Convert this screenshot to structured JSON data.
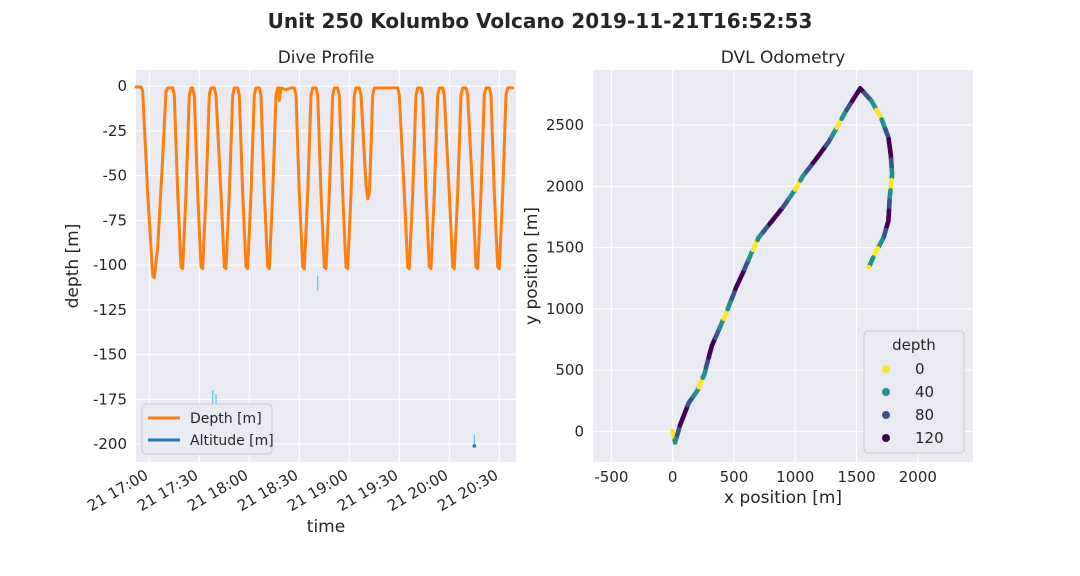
{
  "figure": {
    "suptitle": "Unit 250 Kolumbo Volcano 2019-11-21T16:52:53"
  },
  "chart_data": [
    {
      "type": "line",
      "title": "Dive Profile",
      "xlabel": "time",
      "ylabel": "depth [m]",
      "x_ticks": [
        "21 17:00",
        "21 17:30",
        "21 18:00",
        "21 18:30",
        "21 19:00",
        "21 19:30",
        "21 20:00",
        "21 20:30"
      ],
      "y_ticks": [
        0,
        -25,
        -50,
        -75,
        -100,
        -125,
        -150,
        -175,
        -200
      ],
      "xlim": [
        "16:52",
        "20:40"
      ],
      "ylim": [
        -210,
        9
      ],
      "grid": true,
      "legend_position": "lower-left",
      "series": [
        {
          "name": "Depth [m]",
          "color": "#ff7f0e",
          "points": [
            [
              "16:52",
              -0.5
            ],
            [
              "16:55",
              -0.5
            ],
            [
              "16:56",
              -3
            ],
            [
              "16:59",
              -60
            ],
            [
              "17:02",
              -106
            ],
            [
              "17:03",
              -107
            ],
            [
              "17:05",
              -90
            ],
            [
              "17:08",
              -40
            ],
            [
              "17:10",
              -3
            ],
            [
              "17:11",
              -1
            ],
            [
              "17:14",
              -1
            ],
            [
              "17:15",
              -5
            ],
            [
              "17:17",
              -60
            ],
            [
              "17:19",
              -101
            ],
            [
              "17:20",
              -102
            ],
            [
              "17:22",
              -60
            ],
            [
              "17:24",
              -5
            ],
            [
              "17:25",
              -1
            ],
            [
              "17:26",
              -1
            ],
            [
              "17:27",
              -5
            ],
            [
              "17:29",
              -60
            ],
            [
              "17:31",
              -101
            ],
            [
              "17:32",
              -102
            ],
            [
              "17:34",
              -60
            ],
            [
              "17:36",
              -5
            ],
            [
              "17:37",
              -1
            ],
            [
              "17:39",
              -1
            ],
            [
              "17:40",
              -5
            ],
            [
              "17:43",
              -60
            ],
            [
              "17:45",
              -101
            ],
            [
              "17:46",
              -102
            ],
            [
              "17:48",
              -60
            ],
            [
              "17:50",
              -5
            ],
            [
              "17:51",
              -1
            ],
            [
              "17:53",
              -1
            ],
            [
              "17:54",
              -5
            ],
            [
              "17:56",
              -60
            ],
            [
              "17:58",
              -101
            ],
            [
              "17:59",
              -102
            ],
            [
              "18:01",
              -60
            ],
            [
              "18:03",
              -5
            ],
            [
              "18:04",
              -1
            ],
            [
              "18:06",
              -1
            ],
            [
              "18:07",
              -5
            ],
            [
              "18:09",
              -60
            ],
            [
              "18:11",
              -101
            ],
            [
              "18:12",
              -102
            ],
            [
              "18:14",
              -60
            ],
            [
              "18:16",
              -5
            ],
            [
              "18:17",
              -1
            ],
            [
              "18:18",
              -1
            ],
            [
              "18:18",
              -8
            ],
            [
              "18:19",
              -1
            ],
            [
              "18:22",
              -2
            ],
            [
              "18:25",
              -1
            ],
            [
              "18:27",
              -1
            ],
            [
              "18:28",
              -5
            ],
            [
              "18:30",
              -60
            ],
            [
              "18:32",
              -101
            ],
            [
              "18:33",
              -102
            ],
            [
              "18:35",
              -60
            ],
            [
              "18:37",
              -5
            ],
            [
              "18:38",
              -1
            ],
            [
              "18:40",
              -1
            ],
            [
              "18:41",
              -5
            ],
            [
              "18:43",
              -60
            ],
            [
              "18:45",
              -101
            ],
            [
              "18:46",
              -102
            ],
            [
              "18:48",
              -60
            ],
            [
              "18:50",
              -5
            ],
            [
              "18:51",
              -1
            ],
            [
              "18:53",
              -1
            ],
            [
              "18:54",
              -5
            ],
            [
              "18:56",
              -60
            ],
            [
              "18:58",
              -101
            ],
            [
              "18:59",
              -102
            ],
            [
              "19:01",
              -60
            ],
            [
              "19:03",
              -5
            ],
            [
              "19:04",
              -1
            ],
            [
              "19:06",
              -1
            ],
            [
              "19:07",
              -5
            ],
            [
              "19:10",
              -55
            ],
            [
              "19:11",
              -63
            ],
            [
              "19:12",
              -60
            ],
            [
              "19:13",
              -35
            ],
            [
              "19:14",
              -5
            ],
            [
              "19:15",
              -1
            ],
            [
              "19:29",
              -1
            ],
            [
              "19:30",
              -5
            ],
            [
              "19:33",
              -60
            ],
            [
              "19:35",
              -101
            ],
            [
              "19:36",
              -102
            ],
            [
              "19:38",
              -60
            ],
            [
              "19:40",
              -5
            ],
            [
              "19:41",
              -1
            ],
            [
              "19:43",
              -1
            ],
            [
              "19:44",
              -5
            ],
            [
              "19:46",
              -60
            ],
            [
              "19:48",
              -101
            ],
            [
              "19:49",
              -102
            ],
            [
              "19:51",
              -60
            ],
            [
              "19:53",
              -5
            ],
            [
              "19:54",
              -1
            ],
            [
              "19:56",
              -1
            ],
            [
              "19:57",
              -5
            ],
            [
              "20:00",
              -60
            ],
            [
              "20:02",
              -101
            ],
            [
              "20:03",
              -102
            ],
            [
              "20:05",
              -60
            ],
            [
              "20:07",
              -5
            ],
            [
              "20:08",
              -1
            ],
            [
              "20:10",
              -1
            ],
            [
              "20:11",
              -5
            ],
            [
              "20:14",
              -60
            ],
            [
              "20:16",
              -101
            ],
            [
              "20:17",
              -102
            ],
            [
              "20:19",
              -60
            ],
            [
              "20:21",
              -5
            ],
            [
              "20:22",
              -1
            ],
            [
              "20:24",
              -1
            ],
            [
              "20:25",
              -5
            ],
            [
              "20:27",
              -60
            ],
            [
              "20:29",
              -101
            ],
            [
              "20:30",
              -102
            ],
            [
              "20:32",
              -60
            ],
            [
              "20:34",
              -5
            ],
            [
              "20:35",
              -1
            ],
            [
              "20:38",
              -1
            ]
          ]
        },
        {
          "name": "Altitude [m]",
          "color": "#1f77b4",
          "segments": [
            [
              [
                "17:38",
                -170
              ],
              [
                "17:38",
                -198
              ]
            ],
            [
              [
                "17:40",
                -172
              ],
              [
                "17:40",
                -200
              ]
            ],
            [
              [
                "18:41",
                -106
              ],
              [
                "18:41",
                -114
              ]
            ],
            [
              [
                "20:15",
                -195
              ],
              [
                "20:15",
                -201
              ]
            ]
          ]
        }
      ]
    },
    {
      "type": "scatter",
      "title": "DVL Odometry",
      "xlabel": "x position [m]",
      "ylabel": "y position [m]",
      "x_ticks": [
        -500,
        0,
        500,
        1000,
        1500,
        2000
      ],
      "y_ticks": [
        0,
        500,
        1000,
        1500,
        2000,
        2500
      ],
      "xlim": [
        -650,
        2450
      ],
      "ylim": [
        -250,
        2950
      ],
      "grid": true,
      "legend_title": "depth",
      "legend_position": "lower-right",
      "hue_levels": [
        {
          "label": "0",
          "value": 0,
          "color": "#fde725"
        },
        {
          "label": "40",
          "value": 40,
          "color": "#21918c"
        },
        {
          "label": "80",
          "value": 80,
          "color": "#3b528b"
        },
        {
          "label": "120",
          "value": 120,
          "color": "#440154"
        }
      ],
      "track": [
        [
          0,
          0
        ],
        [
          20,
          -90
        ],
        [
          60,
          50
        ],
        [
          130,
          230
        ],
        [
          200,
          330
        ],
        [
          260,
          470
        ],
        [
          290,
          590
        ],
        [
          320,
          700
        ],
        [
          390,
          860
        ],
        [
          430,
          950
        ],
        [
          520,
          1180
        ],
        [
          580,
          1310
        ],
        [
          640,
          1450
        ],
        [
          700,
          1580
        ],
        [
          780,
          1680
        ],
        [
          900,
          1830
        ],
        [
          990,
          1960
        ],
        [
          1060,
          2080
        ],
        [
          1190,
          2250
        ],
        [
          1270,
          2360
        ],
        [
          1340,
          2480
        ],
        [
          1410,
          2610
        ],
        [
          1530,
          2800
        ],
        [
          1620,
          2700
        ],
        [
          1700,
          2560
        ],
        [
          1760,
          2400
        ],
        [
          1780,
          2250
        ],
        [
          1790,
          2100
        ],
        [
          1770,
          1900
        ],
        [
          1760,
          1720
        ],
        [
          1720,
          1580
        ],
        [
          1650,
          1450
        ],
        [
          1600,
          1340
        ]
      ]
    }
  ]
}
